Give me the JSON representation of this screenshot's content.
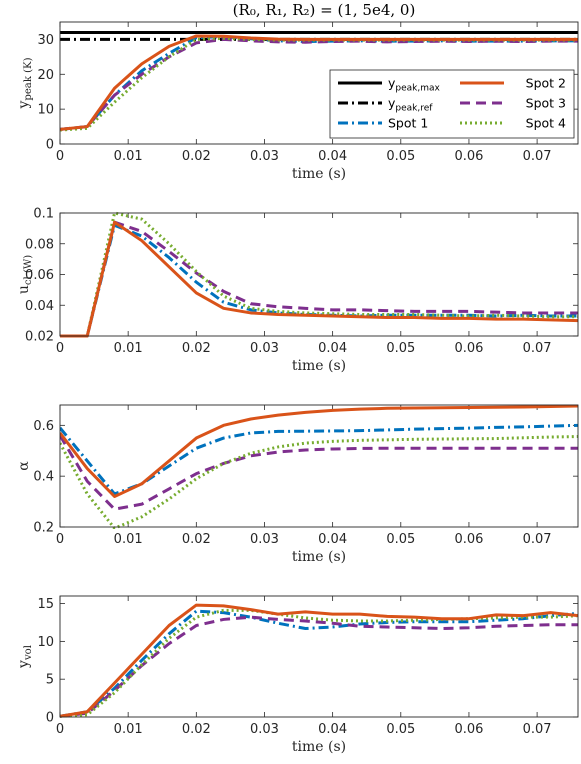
{
  "figure_title": "(R₀, R₁, R₂) = (1, 5e4, 0)",
  "colors": {
    "y_peak_max": "#000000",
    "y_peak_ref": "#000000",
    "spot1": "#0072BD",
    "spot2": "#D95319",
    "spot3": "#7E2F8E",
    "spot4": "#77AC30"
  },
  "chart_data": [
    {
      "type": "line",
      "title": "(R₀, R₁, R₂) = (1, 5e4, 0)",
      "xlabel": "time (s)",
      "ylabel": "y_peak (K)",
      "xlim": [
        0,
        0.076
      ],
      "ylim": [
        0,
        35
      ],
      "xticks": [
        "0",
        "0.01",
        "0.02",
        "0.03",
        "0.04",
        "0.05",
        "0.06",
        "0.07"
      ],
      "yticks": [
        "0",
        "10",
        "20",
        "30"
      ],
      "legend": {
        "placement": "bottom-right",
        "entries": [
          "y_peak,max",
          "y_peak,ref",
          "Spot 1",
          "Spot 2",
          "Spot 3",
          "Spot 4"
        ]
      },
      "x": [
        0,
        0.004,
        0.008,
        0.012,
        0.016,
        0.02,
        0.024,
        0.028,
        0.032,
        0.036,
        0.04,
        0.044,
        0.048,
        0.052,
        0.056,
        0.06,
        0.064,
        0.068,
        0.072,
        0.076
      ],
      "series": [
        {
          "name": "y_peak,max",
          "style": "solid",
          "values": [
            32,
            32,
            32,
            32,
            32,
            32,
            32,
            32,
            32,
            32,
            32,
            32,
            32,
            32,
            32,
            32,
            32,
            32,
            32,
            32
          ]
        },
        {
          "name": "y_peak,ref",
          "style": "dashdot",
          "values": [
            30,
            30,
            30,
            30,
            30,
            30,
            30,
            30,
            30,
            30,
            30,
            30,
            30,
            30,
            30,
            30,
            30,
            30,
            30,
            30
          ]
        },
        {
          "name": "Spot 1",
          "style": "dashdot-thick",
          "values": [
            4.2,
            5,
            14,
            21,
            26,
            30.5,
            30.8,
            30.2,
            29.6,
            29.4,
            29.5,
            29.6,
            29.5,
            29.5,
            29.6,
            29.5,
            29.5,
            29.5,
            29.6,
            29.6
          ]
        },
        {
          "name": "Spot 2",
          "style": "solid-thick",
          "values": [
            4.2,
            5,
            16,
            23,
            28,
            31,
            30.9,
            30.4,
            30.1,
            30,
            30,
            30,
            30,
            30,
            30,
            30,
            30,
            30,
            30,
            30
          ]
        },
        {
          "name": "Spot 3",
          "style": "dashed",
          "values": [
            4.2,
            5,
            14,
            20,
            25,
            29,
            30,
            29.6,
            29.3,
            29.2,
            29.4,
            29.5,
            29.3,
            29.4,
            29.5,
            29.4,
            29.5,
            29.4,
            29.5,
            29.5
          ]
        },
        {
          "name": "Spot 4",
          "style": "dotted",
          "values": [
            4,
            4.5,
            12,
            19,
            25,
            30,
            30.3,
            30,
            29.8,
            29.8,
            29.8,
            29.8,
            29.8,
            29.8,
            29.8,
            29.8,
            29.8,
            29.8,
            29.8,
            29.8
          ]
        }
      ]
    },
    {
      "type": "line",
      "xlabel": "time (s)",
      "ylabel": "u_cl (W)",
      "xlim": [
        0,
        0.076
      ],
      "ylim": [
        0.02,
        0.1
      ],
      "xticks": [
        "0",
        "0.01",
        "0.02",
        "0.03",
        "0.04",
        "0.05",
        "0.06",
        "0.07"
      ],
      "yticks": [
        "0.02",
        "0.04",
        "0.06",
        "0.08",
        "0.1"
      ],
      "x": [
        0,
        0.004,
        0.008,
        0.012,
        0.016,
        0.02,
        0.024,
        0.028,
        0.032,
        0.036,
        0.04,
        0.044,
        0.048,
        0.052,
        0.056,
        0.06,
        0.064,
        0.068,
        0.072,
        0.076
      ],
      "series": [
        {
          "name": "Spot 1",
          "style": "dashdot-thick",
          "values": [
            0.02,
            0.02,
            0.092,
            0.085,
            0.071,
            0.055,
            0.042,
            0.037,
            0.035,
            0.034,
            0.0335,
            0.033,
            0.0335,
            0.0335,
            0.0335,
            0.0335,
            0.033,
            0.0335,
            0.033,
            0.033
          ]
        },
        {
          "name": "Spot 2",
          "style": "solid-thick",
          "values": [
            0.02,
            0.02,
            0.094,
            0.082,
            0.065,
            0.048,
            0.038,
            0.035,
            0.034,
            0.0335,
            0.033,
            0.0325,
            0.032,
            0.032,
            0.0315,
            0.0315,
            0.031,
            0.031,
            0.0305,
            0.03
          ]
        },
        {
          "name": "Spot 3",
          "style": "dashed",
          "values": [
            0.02,
            0.02,
            0.094,
            0.088,
            0.075,
            0.061,
            0.049,
            0.041,
            0.039,
            0.038,
            0.037,
            0.037,
            0.0365,
            0.036,
            0.036,
            0.036,
            0.0355,
            0.035,
            0.035,
            0.035
          ]
        },
        {
          "name": "Spot 4",
          "style": "dotted",
          "values": [
            0.02,
            0.02,
            0.1,
            0.096,
            0.08,
            0.062,
            0.046,
            0.038,
            0.036,
            0.035,
            0.0345,
            0.034,
            0.034,
            0.034,
            0.0335,
            0.033,
            0.0335,
            0.033,
            0.0325,
            0.0325
          ]
        }
      ]
    },
    {
      "type": "line",
      "xlabel": "time (s)",
      "ylabel": "α",
      "xlim": [
        0,
        0.076
      ],
      "ylim": [
        0.2,
        0.68
      ],
      "xticks": [
        "0",
        "0.01",
        "0.02",
        "0.03",
        "0.04",
        "0.05",
        "0.06",
        "0.07"
      ],
      "yticks": [
        "0.2",
        "0.4",
        "0.6"
      ],
      "x": [
        0,
        0.004,
        0.008,
        0.012,
        0.016,
        0.02,
        0.024,
        0.028,
        0.032,
        0.036,
        0.04,
        0.044,
        0.048,
        0.052,
        0.056,
        0.06,
        0.064,
        0.068,
        0.072,
        0.076
      ],
      "series": [
        {
          "name": "Spot 1",
          "style": "dashdot-thick",
          "values": [
            0.59,
            0.46,
            0.33,
            0.37,
            0.44,
            0.51,
            0.55,
            0.57,
            0.576,
            0.577,
            0.578,
            0.579,
            0.582,
            0.585,
            0.587,
            0.589,
            0.592,
            0.594,
            0.597,
            0.6
          ]
        },
        {
          "name": "Spot 2",
          "style": "solid-thick",
          "values": [
            0.57,
            0.43,
            0.32,
            0.37,
            0.46,
            0.55,
            0.6,
            0.625,
            0.64,
            0.651,
            0.659,
            0.664,
            0.667,
            0.668,
            0.669,
            0.67,
            0.671,
            0.672,
            0.674,
            0.676
          ]
        },
        {
          "name": "Spot 3",
          "style": "dashed",
          "values": [
            0.56,
            0.38,
            0.27,
            0.29,
            0.35,
            0.41,
            0.45,
            0.48,
            0.495,
            0.503,
            0.507,
            0.509,
            0.51,
            0.51,
            0.51,
            0.51,
            0.51,
            0.51,
            0.51,
            0.51
          ]
        },
        {
          "name": "Spot 4",
          "style": "dotted",
          "values": [
            0.53,
            0.33,
            0.195,
            0.24,
            0.31,
            0.39,
            0.45,
            0.49,
            0.515,
            0.53,
            0.537,
            0.541,
            0.543,
            0.545,
            0.546,
            0.547,
            0.548,
            0.551,
            0.554,
            0.556
          ]
        }
      ]
    },
    {
      "type": "line",
      "xlabel": "time (s)",
      "ylabel": "y_vol",
      "xlim": [
        0,
        0.076
      ],
      "ylim": [
        0,
        16
      ],
      "xticks": [
        "0",
        "0.01",
        "0.02",
        "0.03",
        "0.04",
        "0.05",
        "0.06",
        "0.07"
      ],
      "yticks": [
        "0",
        "5",
        "10",
        "15"
      ],
      "x": [
        0,
        0.004,
        0.008,
        0.012,
        0.016,
        0.02,
        0.024,
        0.028,
        0.032,
        0.036,
        0.04,
        0.044,
        0.048,
        0.052,
        0.056,
        0.06,
        0.064,
        0.068,
        0.072,
        0.076
      ],
      "series": [
        {
          "name": "Spot 1",
          "style": "dashdot-thick",
          "values": [
            0.1,
            0.7,
            3.8,
            7.5,
            11,
            14,
            13.8,
            13.2,
            12.4,
            11.7,
            11.9,
            12.3,
            12.5,
            12.6,
            12.6,
            12.6,
            12.8,
            13,
            13.4,
            13.7
          ]
        },
        {
          "name": "Spot 2",
          "style": "solid-thick",
          "values": [
            0.1,
            0.7,
            4.5,
            8.3,
            12.1,
            14.8,
            14.7,
            14.2,
            13.6,
            13.9,
            13.6,
            13.6,
            13.3,
            13.2,
            13,
            13,
            13.5,
            13.4,
            13.8,
            13.4
          ]
        },
        {
          "name": "Spot 3",
          "style": "dashed",
          "values": [
            0.1,
            0.5,
            3.5,
            6.8,
            9.7,
            12.1,
            12.9,
            13.2,
            12.9,
            12.7,
            12.4,
            12,
            11.9,
            11.8,
            11.7,
            11.8,
            12,
            12.1,
            12.2,
            12.2
          ]
        },
        {
          "name": "Spot 4",
          "style": "dotted",
          "values": [
            0.1,
            0.3,
            3.2,
            6.9,
            10.4,
            13.2,
            14.1,
            14.1,
            13.6,
            13.1,
            12.8,
            12.7,
            12.7,
            12.8,
            12.9,
            13,
            13.1,
            13.2,
            13.2,
            13.4
          ]
        }
      ]
    }
  ]
}
